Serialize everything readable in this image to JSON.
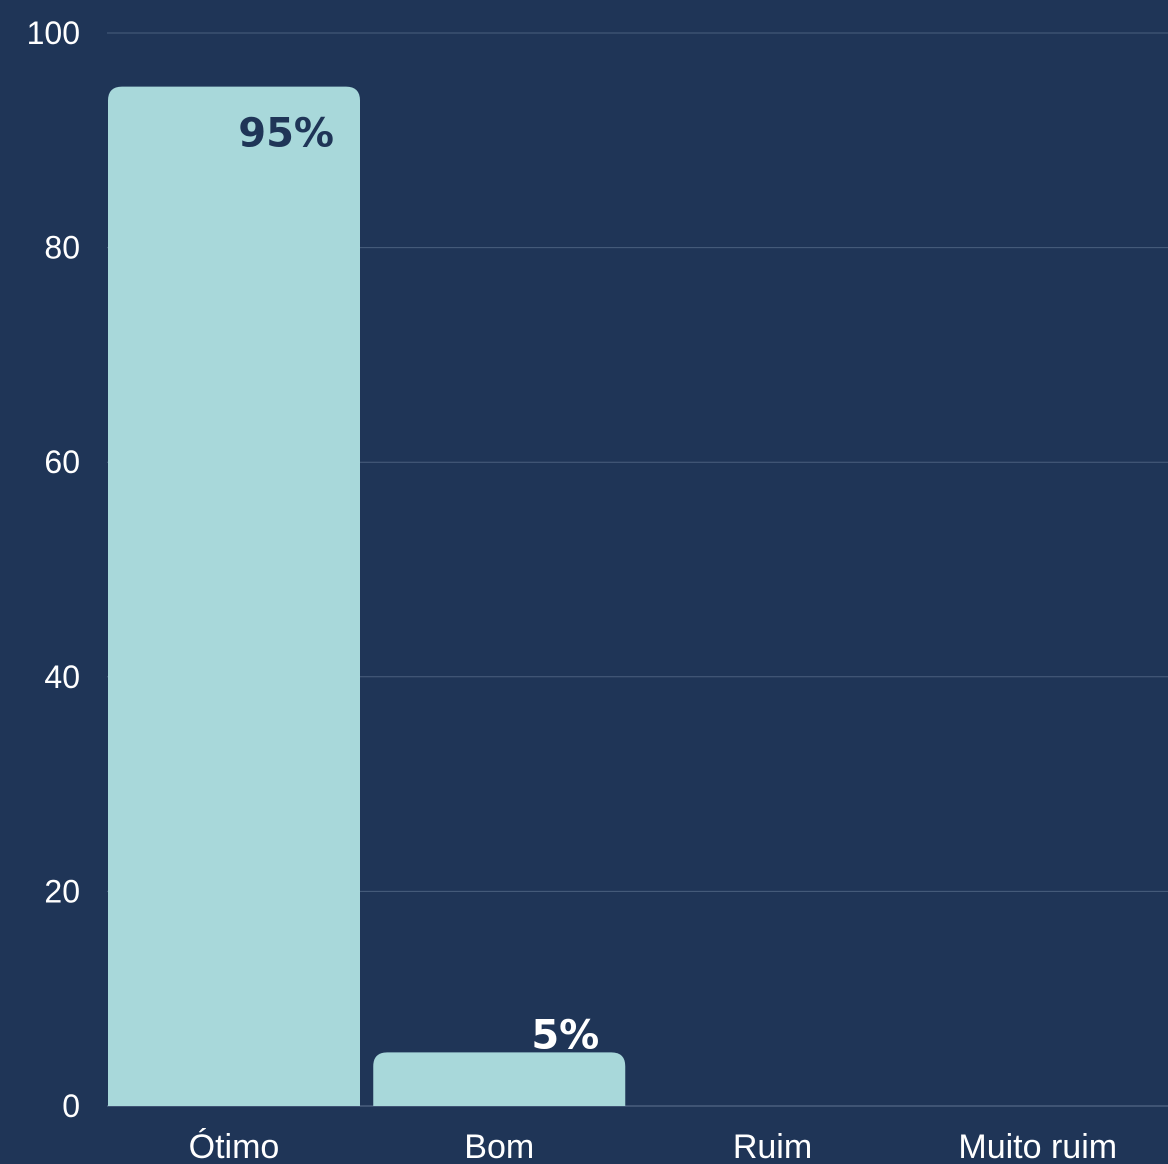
{
  "chart_data": {
    "type": "bar",
    "categories": [
      "Ótimo",
      "Bom",
      "Ruim",
      "Muito ruim"
    ],
    "values": [
      95,
      5,
      0,
      0
    ],
    "data_labels": [
      "95%",
      "5%",
      "",
      ""
    ],
    "ylim": [
      0,
      100
    ],
    "y_ticks": [
      "0",
      "20",
      "40",
      "60",
      "80",
      "100"
    ],
    "y_tick_values": [
      0,
      20,
      40,
      60,
      80,
      100
    ],
    "grid": true,
    "colors": {
      "background": "#1f3557",
      "bar": "#a8d8da",
      "grid": "#4a5f7e",
      "text": "#ffffff",
      "label_inside": "#1f3557",
      "label_outside": "#ffffff"
    }
  }
}
